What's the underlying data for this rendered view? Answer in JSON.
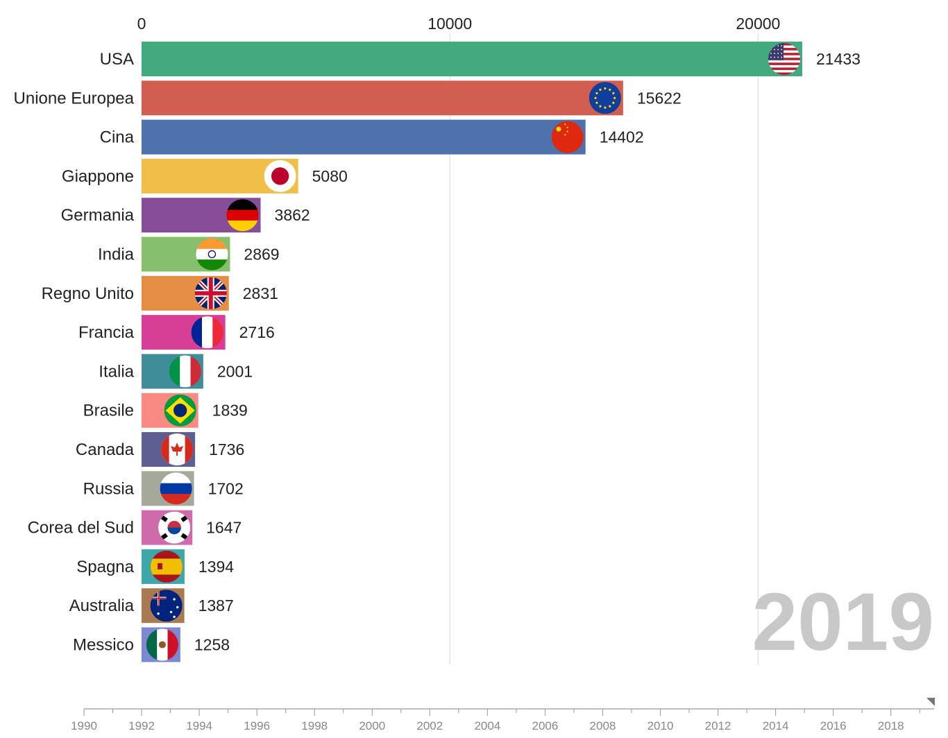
{
  "chart_data": {
    "type": "bar",
    "orientation": "horizontal",
    "axis_ticks": [
      0,
      10000,
      20000
    ],
    "xlim": [
      0,
      21433
    ],
    "current_year": "2019",
    "timeline": {
      "ticks": [
        "1990",
        "1992",
        "1994",
        "1996",
        "1998",
        "2000",
        "2002",
        "2004",
        "2006",
        "2008",
        "2010",
        "2012",
        "2014",
        "2016",
        "2018"
      ],
      "range": [
        1990,
        2019.5
      ],
      "position": 2019.5
    },
    "bars": [
      {
        "label": "USA",
        "value": 21433,
        "value_label": "21433",
        "color": "#43AA80",
        "flag": "usa-flag-icon"
      },
      {
        "label": "Unione Europea",
        "value": 15622,
        "value_label": "15622",
        "color": "#D05F52",
        "flag": "eu-flag-icon"
      },
      {
        "label": "Cina",
        "value": 14402,
        "value_label": "14402",
        "color": "#4D72AE",
        "flag": "china-flag-icon"
      },
      {
        "label": "Giappone",
        "value": 5080,
        "value_label": "5080",
        "color": "#F1BF48",
        "flag": "japan-flag-icon"
      },
      {
        "label": "Germania",
        "value": 3862,
        "value_label": "3862",
        "color": "#854E97",
        "flag": "germany-flag-icon"
      },
      {
        "label": "India",
        "value": 2869,
        "value_label": "2869",
        "color": "#86C06C",
        "flag": "india-flag-icon"
      },
      {
        "label": "Regno Unito",
        "value": 2831,
        "value_label": "2831",
        "color": "#E48D44",
        "flag": "uk-flag-icon"
      },
      {
        "label": "Francia",
        "value": 2716,
        "value_label": "2716",
        "color": "#D63F95",
        "flag": "france-flag-icon"
      },
      {
        "label": "Italia",
        "value": 2001,
        "value_label": "2001",
        "color": "#3E8D98",
        "flag": "italy-flag-icon"
      },
      {
        "label": "Brasile",
        "value": 1839,
        "value_label": "1839",
        "color": "#F98A82",
        "flag": "brazil-flag-icon"
      },
      {
        "label": "Canada",
        "value": 1736,
        "value_label": "1736",
        "color": "#5D5E92",
        "flag": "canada-flag-icon"
      },
      {
        "label": "Russia",
        "value": 1702,
        "value_label": "1702",
        "color": "#A5A99A",
        "flag": "russia-flag-icon"
      },
      {
        "label": "Corea del Sud",
        "value": 1647,
        "value_label": "1647",
        "color": "#CF6BAA",
        "flag": "south-korea-flag-icon"
      },
      {
        "label": "Spagna",
        "value": 1394,
        "value_label": "1394",
        "color": "#3FA6A9",
        "flag": "spain-flag-icon"
      },
      {
        "label": "Australia",
        "value": 1387,
        "value_label": "1387",
        "color": "#A97A4F",
        "flag": "australia-flag-icon"
      },
      {
        "label": "Messico",
        "value": 1258,
        "value_label": "1258",
        "color": "#7C88D2",
        "flag": "mexico-flag-icon"
      }
    ]
  }
}
